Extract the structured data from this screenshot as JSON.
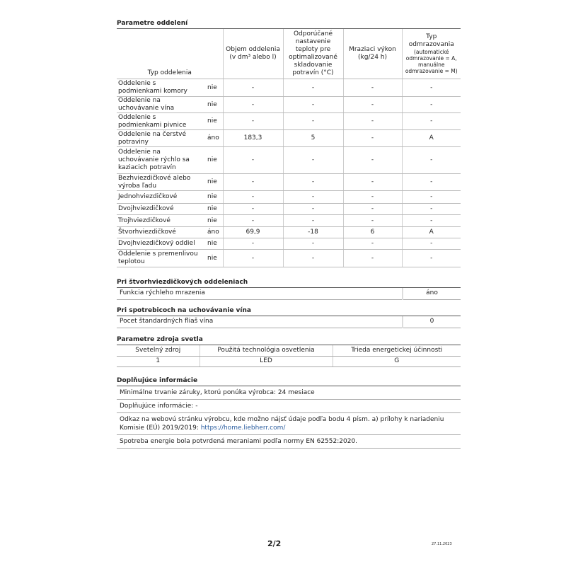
{
  "compartments": {
    "title": "Parametre oddelení",
    "headers": [
      "Typ oddelenia",
      "Objem oddelenia (v dm³ alebo l)",
      "Odporúčané nastavenie teploty pre optimalizované skladovanie potravín (°C)",
      "Mraziaci výkon (kg/24 h)",
      "Typ odmrazovania",
      "(automatické odmrazovanie = A, manuálne odmrazovanie = M)"
    ],
    "rows": [
      [
        "Oddelenie s podmienkami komory",
        "nie",
        "-",
        "-",
        "-",
        "-"
      ],
      [
        "Oddelenie na uchovávanie vína",
        "nie",
        "-",
        "-",
        "-",
        "-"
      ],
      [
        "Oddelenie s podmienkami pivnice",
        "nie",
        "-",
        "-",
        "-",
        "-"
      ],
      [
        "Oddelenie na čerstvé potraviny",
        "áno",
        "183,3",
        "5",
        "-",
        "A"
      ],
      [
        "Oddelenie na uchovávanie rýchlo sa kaziacich potravín",
        "nie",
        "-",
        "-",
        "-",
        "-"
      ],
      [
        "Bezhviezdičkové alebo výroba ľadu",
        "nie",
        "-",
        "-",
        "-",
        "-"
      ],
      [
        "Jednohviezdičkové",
        "nie",
        "-",
        "-",
        "-",
        "-"
      ],
      [
        "Dvojhviezdičkové",
        "nie",
        "-",
        "-",
        "-",
        "-"
      ],
      [
        "Trojhviezdičkové",
        "nie",
        "-",
        "-",
        "-",
        "-"
      ],
      [
        "Štvorhviezdičkové",
        "áno",
        "69,9",
        "-18",
        "6",
        "A"
      ],
      [
        "Dvojhviezdičkový oddiel",
        "nie",
        "-",
        "-",
        "-",
        "-"
      ],
      [
        "Oddelenie s premenlivou teplotou",
        "nie",
        "-",
        "-",
        "-",
        "-"
      ]
    ]
  },
  "four_star": {
    "title": "Pri štvorhviezdičkových oddeleniach",
    "label": "Funkcia rýchleho mrazenia",
    "value": "áno"
  },
  "wine": {
    "title": "Pri spotrebicoch na uchovávanie vína",
    "label": "Pocet štandardných fliaš vína",
    "value": "0"
  },
  "light": {
    "title": "Parametre zdroja svetla",
    "headers": [
      "Svetelný zdroj",
      "Použitá technológia osvetlenia",
      "Trieda energetickej účinnosti"
    ],
    "values": [
      "1",
      "LED",
      "G"
    ]
  },
  "info": {
    "title": "Doplňujúce informácie",
    "warranty": "Minimálne trvanie záruky, ktorú ponúka výrobca: 24 mesiace",
    "additional": "Doplňujúce informácie: -",
    "link_text": "Odkaz na webovú stránku výrobcu, kde možno nájsť údaje podľa bodu 4 písm. a) prílohy k nariadeniu Komisie (EÚ) 2019/2019: ",
    "link_url": "https://home.liebherr.com/",
    "energy": "Spotreba energie bola potvrdená meraniami podľa normy EN 62552:2020."
  },
  "footer": {
    "page": "2/2",
    "date": "27.11.2023"
  }
}
